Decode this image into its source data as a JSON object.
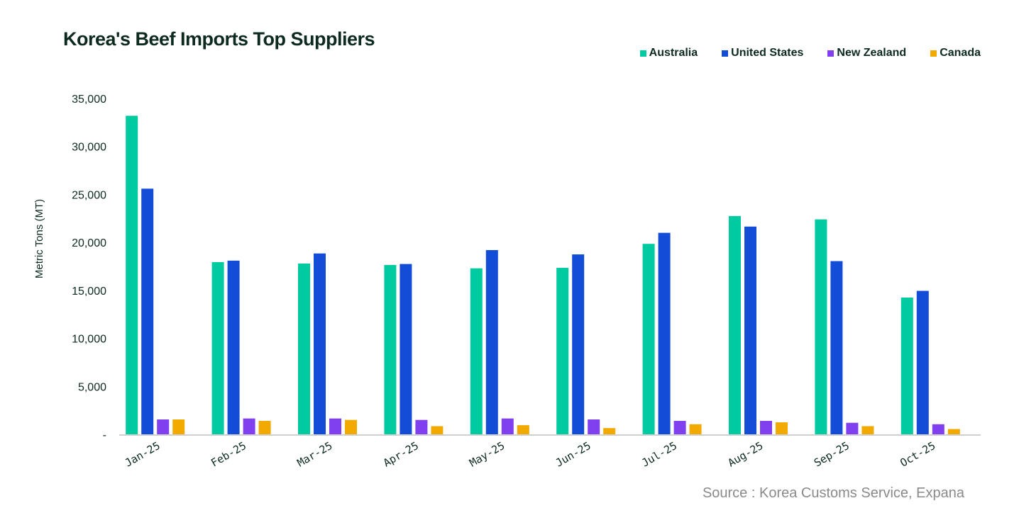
{
  "chart_data": {
    "type": "bar",
    "title": "Korea's Beef Imports Top Suppliers",
    "xlabel": "",
    "ylabel": "Metric Tons (MT)",
    "ylim": [
      0,
      35000
    ],
    "yticks": [
      0,
      5000,
      10000,
      15000,
      20000,
      25000,
      30000,
      35000
    ],
    "ytick_labels": [
      "-",
      "5,000",
      "10,000",
      "15,000",
      "20,000",
      "25,000",
      "30,000",
      "35,000"
    ],
    "grid": false,
    "legend_position": "top-right",
    "categories": [
      "Jan-25",
      "Feb-25",
      "Mar-25",
      "Apr-25",
      "May-25",
      "Jun-25",
      "Jul-25",
      "Aug-25",
      "Sep-25",
      "Oct-25"
    ],
    "series": [
      {
        "name": "Australia",
        "color": "#00cba0",
        "values": [
          33200,
          17950,
          17800,
          17650,
          17300,
          17350,
          19850,
          22750,
          22400,
          14250
        ]
      },
      {
        "name": "United States",
        "color": "#134cd6",
        "values": [
          25600,
          18100,
          18850,
          17750,
          19200,
          18750,
          21000,
          21650,
          18050,
          14950
        ]
      },
      {
        "name": "New Zealand",
        "color": "#8140ef",
        "values": [
          1550,
          1650,
          1650,
          1500,
          1650,
          1550,
          1400,
          1400,
          1200,
          1050
        ]
      },
      {
        "name": "Canada",
        "color": "#f2a900",
        "values": [
          1550,
          1400,
          1500,
          850,
          950,
          650,
          1050,
          1250,
          850,
          550
        ]
      }
    ]
  },
  "source": "Source : Korea Customs Service, Expana"
}
